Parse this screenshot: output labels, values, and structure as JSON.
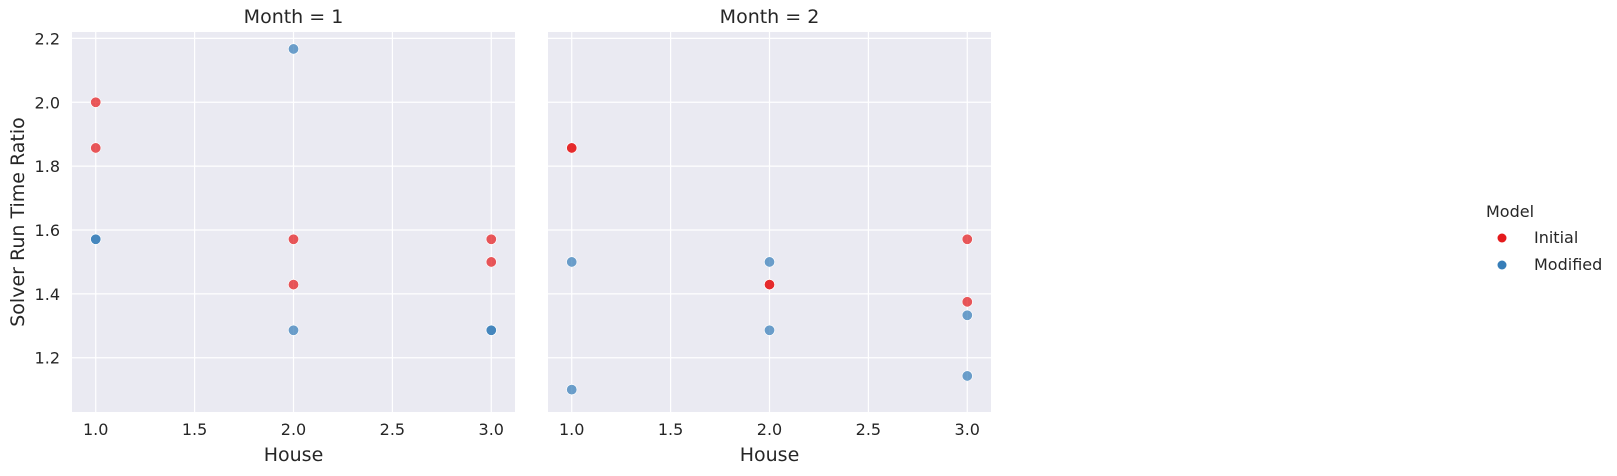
{
  "chart_data": {
    "type": "scatter",
    "facet_variable": "Month",
    "ylabel": "Solver Run Time Ratio",
    "xlabel": "House",
    "ylim": [
      1.03,
      2.22
    ],
    "xlim": [
      0.88,
      3.12
    ],
    "x_ticks": [
      1.0,
      1.5,
      2.0,
      2.5,
      3.0
    ],
    "y_ticks": [
      1.2,
      1.4,
      1.6,
      1.8,
      2.0,
      2.2
    ],
    "x_tick_labels": [
      "1.0",
      "1.5",
      "2.0",
      "2.5",
      "3.0"
    ],
    "y_tick_labels": [
      "1.2",
      "1.4",
      "1.6",
      "1.8",
      "2.0",
      "2.2"
    ],
    "grid": true,
    "legend": {
      "title": "Model",
      "placement": "right",
      "entries": [
        {
          "name": "Initial",
          "color": "#e41a1c"
        },
        {
          "name": "Modified",
          "color": "#377eb8"
        }
      ]
    },
    "panels": [
      {
        "title": "Month = 1",
        "series": [
          {
            "name": "Initial",
            "points": [
              [
                1.0,
                2.0
              ],
              [
                1.0,
                1.857
              ],
              [
                2.0,
                1.571
              ],
              [
                2.0,
                1.429
              ],
              [
                3.0,
                1.571
              ],
              [
                3.0,
                1.5
              ]
            ]
          },
          {
            "name": "Modified",
            "points": [
              [
                1.0,
                1.571
              ],
              [
                1.0,
                1.571
              ],
              [
                2.0,
                2.167
              ],
              [
                2.0,
                1.286
              ],
              [
                3.0,
                1.286
              ],
              [
                3.0,
                1.286
              ]
            ]
          }
        ]
      },
      {
        "title": "Month = 2",
        "series": [
          {
            "name": "Initial",
            "points": [
              [
                1.0,
                1.857
              ],
              [
                1.0,
                1.857
              ],
              [
                2.0,
                1.429
              ],
              [
                2.0,
                1.429
              ],
              [
                3.0,
                1.571
              ],
              [
                3.0,
                1.375
              ]
            ]
          },
          {
            "name": "Modified",
            "points": [
              [
                1.0,
                1.5
              ],
              [
                1.0,
                1.1
              ],
              [
                2.0,
                1.5
              ],
              [
                2.0,
                1.286
              ],
              [
                3.0,
                1.333
              ],
              [
                3.0,
                1.143
              ]
            ]
          }
        ]
      }
    ]
  }
}
